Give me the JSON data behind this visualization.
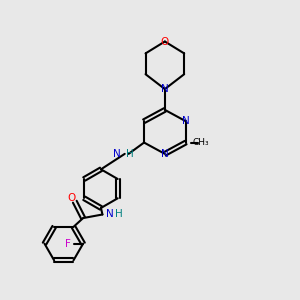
{
  "bg_color": "#e8e8e8",
  "bond_color": "#000000",
  "N_color": "#0000cd",
  "O_color": "#ff0000",
  "F_color": "#cc00cc",
  "H_color": "#008080",
  "lw": 1.5,
  "dbo": 0.065,
  "xlim": [
    0,
    10
  ],
  "ylim": [
    0,
    10
  ]
}
